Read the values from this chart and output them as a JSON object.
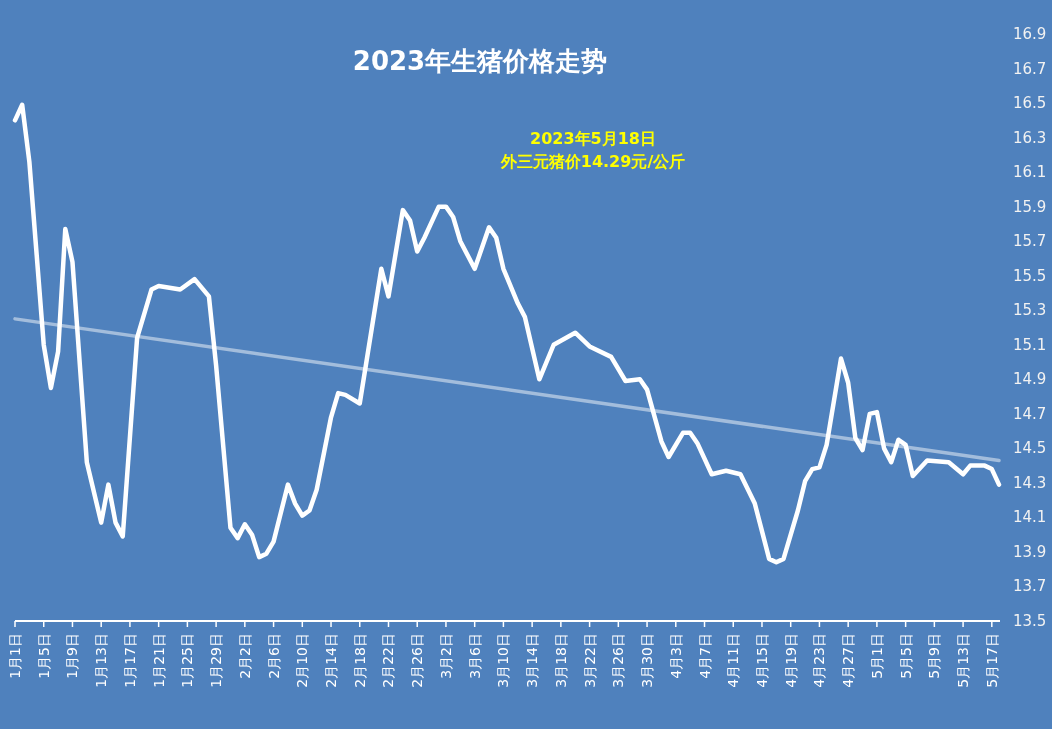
{
  "chart_data": {
    "type": "line",
    "title": "2023年生猪价格走势",
    "annotations": [
      "2023年5月18日",
      "外三元猪价14.29元/公斤"
    ],
    "series": [
      {
        "color": "#ffffff",
        "x": [
          "2023-01-01",
          "2023-01-02",
          "2023-01-03",
          "2023-01-05",
          "2023-01-06",
          "2023-01-07",
          "2023-01-08",
          "2023-01-09",
          "2023-01-11",
          "2023-01-13",
          "2023-01-14",
          "2023-01-15",
          "2023-01-16",
          "2023-01-18",
          "2023-01-20",
          "2023-01-21",
          "2023-01-24",
          "2023-01-26",
          "2023-01-28",
          "2023-01-29",
          "2023-01-31",
          "2023-02-01",
          "2023-02-02",
          "2023-02-03",
          "2023-02-04",
          "2023-02-05",
          "2023-02-06",
          "2023-02-08",
          "2023-02-09",
          "2023-02-10",
          "2023-02-11",
          "2023-02-12",
          "2023-02-14",
          "2023-02-15",
          "2023-02-16",
          "2023-02-18",
          "2023-02-21",
          "2023-02-22",
          "2023-02-24",
          "2023-02-25",
          "2023-02-26",
          "2023-02-27",
          "2023-03-01",
          "2023-03-02",
          "2023-03-03",
          "2023-03-04",
          "2023-03-06",
          "2023-03-08",
          "2023-03-09",
          "2023-03-10",
          "2023-03-12",
          "2023-03-13",
          "2023-03-15",
          "2023-03-17",
          "2023-03-20",
          "2023-03-22",
          "2023-03-25",
          "2023-03-27",
          "2023-03-29",
          "2023-03-30",
          "2023-04-01",
          "2023-04-02",
          "2023-04-04",
          "2023-04-05",
          "2023-04-06",
          "2023-04-08",
          "2023-04-10",
          "2023-04-12",
          "2023-04-14",
          "2023-04-16",
          "2023-04-17",
          "2023-04-18",
          "2023-04-20",
          "2023-04-21",
          "2023-04-22",
          "2023-04-23",
          "2023-04-24",
          "2023-04-26",
          "2023-04-27",
          "2023-04-28",
          "2023-04-29",
          "2023-04-30",
          "2023-05-01",
          "2023-05-02",
          "2023-05-03",
          "2023-05-04",
          "2023-05-05",
          "2023-05-06",
          "2023-05-08",
          "2023-05-11",
          "2023-05-13",
          "2023-05-14",
          "2023-05-16",
          "2023-05-17",
          "2023-05-18"
        ],
        "values": [
          16.4,
          16.49,
          16.16,
          15.1,
          14.85,
          15.06,
          15.77,
          15.58,
          14.42,
          14.07,
          14.29,
          14.07,
          13.99,
          15.14,
          15.42,
          15.44,
          15.42,
          15.48,
          15.38,
          14.98,
          14.04,
          13.98,
          14.06,
          14.0,
          13.87,
          13.89,
          13.96,
          14.29,
          14.18,
          14.11,
          14.14,
          14.26,
          14.68,
          14.82,
          14.81,
          14.76,
          15.54,
          15.38,
          15.88,
          15.82,
          15.64,
          15.72,
          15.9,
          15.9,
          15.84,
          15.7,
          15.54,
          15.78,
          15.72,
          15.54,
          15.34,
          15.26,
          14.9,
          15.1,
          15.17,
          15.09,
          15.03,
          14.89,
          14.9,
          14.84,
          14.54,
          14.45,
          14.59,
          14.59,
          14.53,
          14.35,
          14.37,
          14.35,
          14.18,
          13.86,
          13.84,
          13.86,
          14.14,
          14.31,
          14.38,
          14.39,
          14.52,
          15.02,
          14.88,
          14.56,
          14.49,
          14.7,
          14.71,
          14.5,
          14.42,
          14.55,
          14.52,
          14.34,
          14.43,
          14.42,
          14.35,
          14.4,
          14.4,
          14.38,
          14.29
        ]
      },
      {
        "type": "line",
        "color": "#b8cce4",
        "x": [
          "2023-01-01",
          "2023-05-18"
        ],
        "values": [
          15.25,
          14.43
        ]
      }
    ],
    "xlim": [
      "2023-01-01",
      "2023-05-18"
    ],
    "xticks": [
      {
        "value": "2023-01-01",
        "label": "1月1日"
      },
      {
        "value": "2023-01-05",
        "label": "1月5日"
      },
      {
        "value": "2023-01-09",
        "label": "1月9日"
      },
      {
        "value": "2023-01-13",
        "label": "1月13日"
      },
      {
        "value": "2023-01-17",
        "label": "1月17日"
      },
      {
        "value": "2023-01-21",
        "label": "1月21日"
      },
      {
        "value": "2023-01-25",
        "label": "1月25日"
      },
      {
        "value": "2023-01-29",
        "label": "1月29日"
      },
      {
        "value": "2023-02-02",
        "label": "2月2日"
      },
      {
        "value": "2023-02-06",
        "label": "2月6日"
      },
      {
        "value": "2023-02-10",
        "label": "2月10日"
      },
      {
        "value": "2023-02-14",
        "label": "2月14日"
      },
      {
        "value": "2023-02-18",
        "label": "2月18日"
      },
      {
        "value": "2023-02-22",
        "label": "2月22日"
      },
      {
        "value": "2023-02-26",
        "label": "2月26日"
      },
      {
        "value": "2023-03-02",
        "label": "3月2日"
      },
      {
        "value": "2023-03-06",
        "label": "3月6日"
      },
      {
        "value": "2023-03-10",
        "label": "3月10日"
      },
      {
        "value": "2023-03-14",
        "label": "3月14日"
      },
      {
        "value": "2023-03-18",
        "label": "3月18日"
      },
      {
        "value": "2023-03-22",
        "label": "3月22日"
      },
      {
        "value": "2023-03-26",
        "label": "3月26日"
      },
      {
        "value": "2023-03-30",
        "label": "3月30日"
      },
      {
        "value": "2023-04-03",
        "label": "4月3日"
      },
      {
        "value": "2023-04-07",
        "label": "4月7日"
      },
      {
        "value": "2023-04-11",
        "label": "4月11日"
      },
      {
        "value": "2023-04-15",
        "label": "4月15日"
      },
      {
        "value": "2023-04-19",
        "label": "4月19日"
      },
      {
        "value": "2023-04-23",
        "label": "4月23日"
      },
      {
        "value": "2023-04-27",
        "label": "4月27日"
      },
      {
        "value": "2023-05-01",
        "label": "5月1日"
      },
      {
        "value": "2023-05-05",
        "label": "5月5日"
      },
      {
        "value": "2023-05-09",
        "label": "5月9日"
      },
      {
        "value": "2023-05-13",
        "label": "5月13日"
      },
      {
        "value": "2023-05-17",
        "label": "5月17日"
      }
    ],
    "ylim": [
      13.5,
      16.9
    ],
    "yticks": [
      13.5,
      13.7,
      13.9,
      14.1,
      14.3,
      14.5,
      14.7,
      14.9,
      15.1,
      15.3,
      15.5,
      15.7,
      15.9,
      16.1,
      16.3,
      16.5,
      16.7,
      16.9
    ]
  }
}
